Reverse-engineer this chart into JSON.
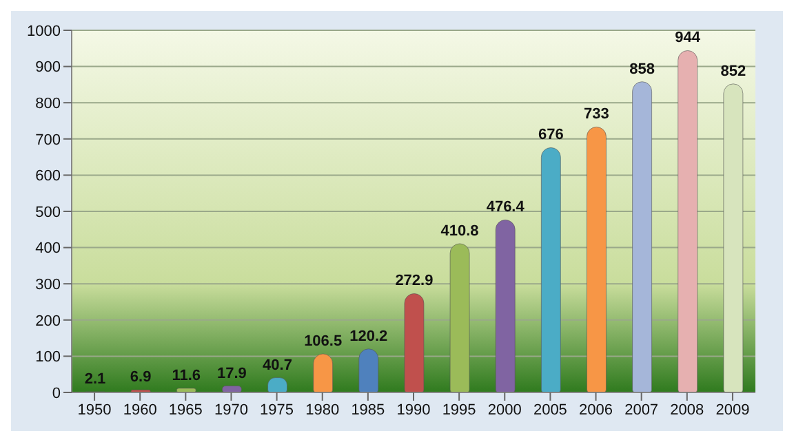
{
  "chart_data": {
    "type": "bar",
    "categories": [
      "1950",
      "1960",
      "1965",
      "1970",
      "1975",
      "1980",
      "1985",
      "1990",
      "1995",
      "2000",
      "2005",
      "2006",
      "2007",
      "2008",
      "2009"
    ],
    "values": [
      2.1,
      6.9,
      11.6,
      17.9,
      40.7,
      106.5,
      120.2,
      272.9,
      410.8,
      476.4,
      676,
      733,
      858,
      944,
      852
    ],
    "colors": [
      "#3f6fb5",
      "#c0504d",
      "#9bbb59",
      "#8064a2",
      "#4bacc6",
      "#f79646",
      "#4f81bd",
      "#c0504d",
      "#9bbb59",
      "#8064a2",
      "#4bacc6",
      "#f79646",
      "#a5b6d9",
      "#e6b0b0",
      "#d7e4bd"
    ],
    "ylim": [
      0,
      1000
    ],
    "yticks": [
      0,
      100,
      200,
      300,
      400,
      500,
      600,
      700,
      800,
      900,
      1000
    ],
    "grid": "y",
    "data_labels": true,
    "legend": false
  }
}
